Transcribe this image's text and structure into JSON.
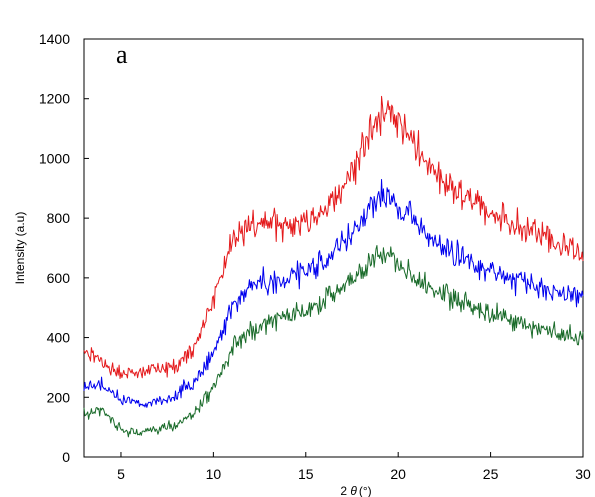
{
  "chart_data": {
    "type": "line",
    "panel_label": "a",
    "xlabel_prefix": "2 ",
    "xlabel_symbol": "θ",
    "xlabel_unit": "(°)",
    "ylabel": "Intensity (a.u)",
    "xlim": [
      3,
      30
    ],
    "ylim": [
      0,
      1400
    ],
    "grid": false,
    "legend": "none",
    "x_ticks": [
      5,
      10,
      15,
      20,
      25,
      30
    ],
    "x_tick_labels": [
      "5",
      "10",
      "15",
      "20",
      "25",
      "30"
    ],
    "y_ticks": [
      0,
      200,
      400,
      600,
      800,
      1000,
      1200,
      1400
    ],
    "y_tick_labels": [
      "0",
      "200",
      "400",
      "600",
      "800",
      "1000",
      "1200",
      "1400"
    ],
    "series": [
      {
        "color": "#e41a1c",
        "x": [
          3,
          4,
          5,
          6,
          7,
          8,
          9,
          10,
          11,
          12,
          13,
          14,
          15,
          16,
          17,
          18,
          19,
          19.5,
          20,
          21,
          22,
          23,
          24,
          25,
          26,
          27,
          28,
          29,
          30
        ],
        "y": [
          350,
          320,
          280,
          280,
          290,
          310,
          370,
          530,
          720,
          770,
          780,
          780,
          790,
          830,
          900,
          1020,
          1140,
          1170,
          1120,
          1030,
          950,
          900,
          860,
          820,
          790,
          760,
          730,
          700,
          680
        ]
      },
      {
        "color": "#0000ee",
        "x": [
          3,
          4,
          5,
          6,
          7,
          8,
          9,
          10,
          11,
          12,
          13,
          14,
          15,
          16,
          17,
          18,
          19,
          19.5,
          20,
          21,
          22,
          23,
          24,
          25,
          26,
          27,
          28,
          29,
          30
        ],
        "y": [
          240,
          240,
          185,
          180,
          190,
          210,
          250,
          350,
          500,
          570,
          590,
          600,
          620,
          650,
          720,
          790,
          860,
          870,
          840,
          780,
          720,
          690,
          650,
          620,
          600,
          580,
          560,
          540,
          520
        ]
      },
      {
        "color": "#1a6b2a",
        "x": [
          3,
          4,
          5,
          6,
          7,
          8,
          9,
          10,
          11,
          12,
          13,
          14,
          15,
          16,
          17,
          18,
          19,
          19.5,
          20,
          21,
          22,
          23,
          24,
          25,
          26,
          27,
          28,
          29,
          30
        ],
        "y": [
          140,
          160,
          90,
          80,
          95,
          110,
          150,
          230,
          360,
          420,
          450,
          470,
          490,
          520,
          570,
          620,
          680,
          670,
          650,
          600,
          560,
          530,
          500,
          480,
          460,
          440,
          420,
          410,
          400
        ]
      }
    ]
  }
}
